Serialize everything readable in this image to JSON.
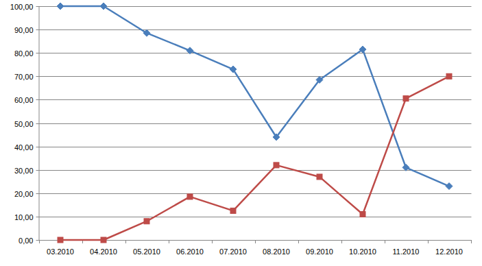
{
  "chart_data": {
    "type": "line",
    "categories": [
      "03.2010",
      "04.2010",
      "05.2010",
      "06.2010",
      "07.2010",
      "08.2010",
      "09.2010",
      "10.2010",
      "11.2010",
      "12.2010"
    ],
    "series": [
      {
        "name": null,
        "color": "#4a7ebb",
        "marker": "diamond",
        "values": [
          100,
          100,
          88.5,
          81,
          73,
          44,
          68.5,
          81.5,
          31,
          23
        ]
      },
      {
        "name": null,
        "color": "#be4b48",
        "marker": "square",
        "values": [
          0,
          0,
          8,
          18.5,
          12.5,
          32,
          27,
          11,
          60.5,
          70
        ]
      }
    ],
    "ylim": [
      0,
      100
    ],
    "yticks": [
      {
        "value": 0,
        "label": "0,00"
      },
      {
        "value": 10,
        "label": "10,00"
      },
      {
        "value": 20,
        "label": "20,00"
      },
      {
        "value": 30,
        "label": "30,00"
      },
      {
        "value": 40,
        "label": "40,00"
      },
      {
        "value": 50,
        "label": "50,00"
      },
      {
        "value": 60,
        "label": "60,00"
      },
      {
        "value": 70,
        "label": "70,00"
      },
      {
        "value": 80,
        "label": "80,00"
      },
      {
        "value": 90,
        "label": "90,00"
      },
      {
        "value": 100,
        "label": "100,00"
      }
    ],
    "grid": true
  }
}
